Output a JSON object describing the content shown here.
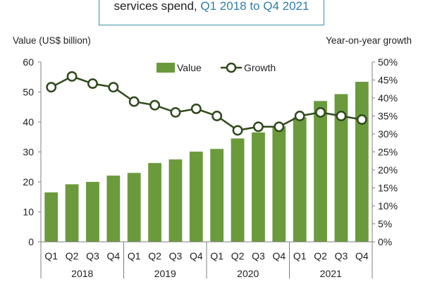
{
  "title": {
    "text": "services  spend, ",
    "highlight": "Q1 2018 to Q4 2021"
  },
  "chart_data": {
    "type": "bar",
    "categories": [
      "Q1",
      "Q2",
      "Q3",
      "Q4",
      "Q1",
      "Q2",
      "Q3",
      "Q4",
      "Q1",
      "Q2",
      "Q3",
      "Q4",
      "Q1",
      "Q2",
      "Q3",
      "Q4"
    ],
    "years": [
      "2018",
      "2019",
      "2020",
      "2021"
    ],
    "ylabel_left": "Value (US$ billion)",
    "ylabel_right": "Year-on-year growth",
    "ylim_left": [
      0,
      60
    ],
    "yticks_left": [
      0,
      10,
      20,
      30,
      40,
      50,
      60
    ],
    "ylim_right": [
      0,
      50
    ],
    "yticks_right": [
      "0%",
      "5%",
      "10%",
      "15%",
      "20%",
      "25%",
      "30%",
      "35%",
      "40%",
      "45%",
      "50%"
    ],
    "grid": false,
    "legend_position": "top-center",
    "series": [
      {
        "name": "Value",
        "type": "bar",
        "axis": "left",
        "color": "#6b9a3c",
        "values": [
          16.5,
          19.2,
          20,
          22.1,
          23,
          26.3,
          27.5,
          30.1,
          31,
          34.5,
          36.5,
          38.5,
          41.5,
          47,
          49.3,
          53.4
        ]
      },
      {
        "name": "Growth",
        "type": "line",
        "axis": "right",
        "color": "#2f4a1c",
        "values": [
          43,
          46,
          44,
          43,
          39,
          38,
          36,
          37,
          35,
          31,
          32,
          32,
          35,
          36,
          35,
          34
        ]
      }
    ]
  }
}
